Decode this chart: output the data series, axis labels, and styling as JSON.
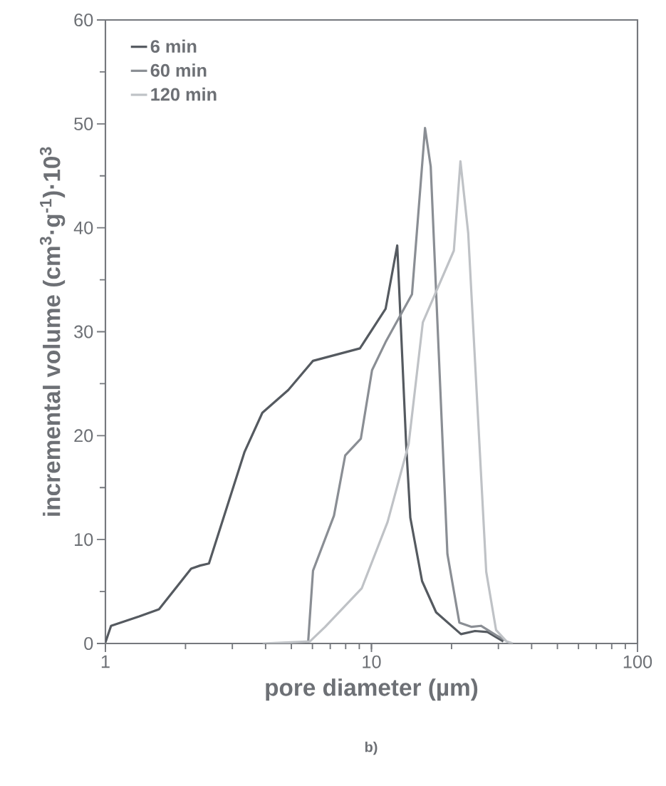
{
  "chart_data": {
    "type": "line",
    "xlabel": "pore diameter (µm)",
    "ylabel": "incremental volume (cm$^{3}$·g$^{-1}$)·10$^{3}$",
    "annotations": [
      "b)"
    ],
    "log": "x",
    "xlim": [
      1,
      100
    ],
    "xticks": [
      1,
      10,
      100
    ],
    "ylim": [
      0,
      60
    ],
    "yticks": [
      0,
      10,
      20,
      30,
      40,
      50,
      60
    ],
    "grid": false,
    "legend": "top left",
    "marker": "none",
    "line_style": "solid",
    "series": [
      {
        "name": "6 min",
        "color": "#555a60",
        "x": [
          1,
          1.05,
          1.34,
          1.59,
          2.1,
          2.27,
          2.45,
          3.33,
          3.89,
          4.87,
          6.03,
          9.05,
          11.3,
          12.5,
          13.5,
          14.0,
          15.5,
          17.5,
          21.7,
          24.5,
          27.3,
          31.3
        ],
        "values": [
          0.1,
          1.7,
          2.6,
          3.3,
          7.2,
          7.5,
          7.7,
          18.4,
          22.2,
          24.4,
          27.2,
          28.4,
          32.2,
          38.3,
          19.2,
          12.1,
          6.0,
          3.0,
          0.9,
          1.2,
          1.1,
          0.2
        ]
      },
      {
        "name": "60 min",
        "color": "#8a8e94",
        "x": [
          5.78,
          6.03,
          7.23,
          7.97,
          9.12,
          10.05,
          11.3,
          14.2,
          15.9,
          16.7,
          19.3,
          21.4,
          23.8,
          25.8,
          29.4,
          31.9
        ],
        "values": [
          0.1,
          7.0,
          12.3,
          18.1,
          19.7,
          26.3,
          29.0,
          33.6,
          49.6,
          45.9,
          8.6,
          2.0,
          1.6,
          1.7,
          0.8,
          0.3
        ]
      },
      {
        "name": "120 min",
        "color": "#bfc2c6",
        "x": [
          3.9,
          5.87,
          6.7,
          9.19,
          11.5,
          13.8,
          15.6,
          20.4,
          21.6,
          23.1,
          27.0,
          29.4,
          32.2,
          34.0
        ],
        "values": [
          0,
          0.2,
          1.6,
          5.3,
          11.7,
          19.2,
          30.9,
          37.8,
          46.4,
          39.5,
          6.9,
          1.3,
          0.2,
          0
        ]
      }
    ]
  }
}
